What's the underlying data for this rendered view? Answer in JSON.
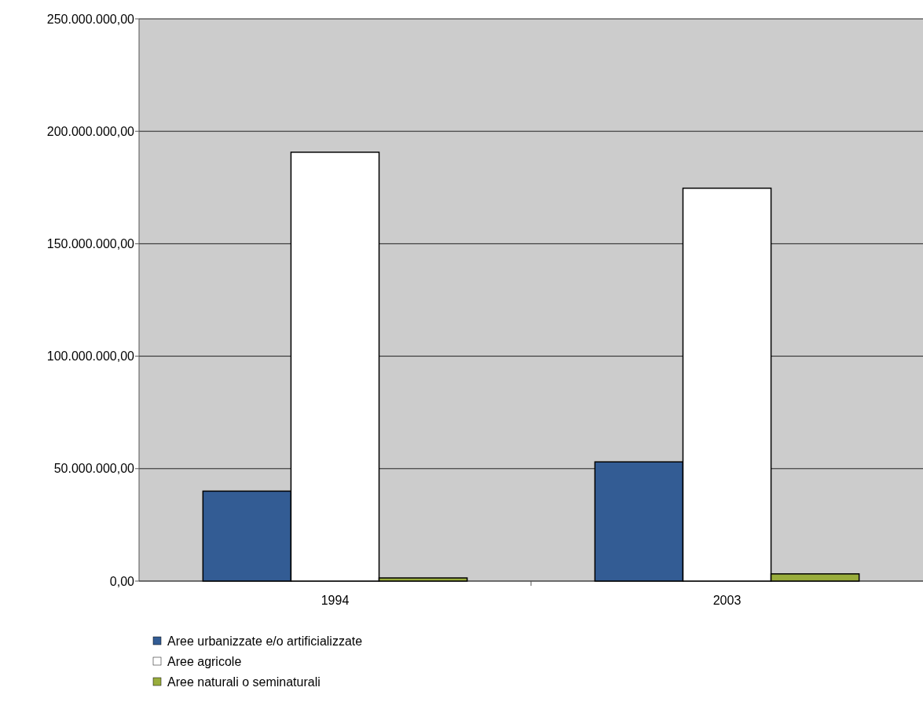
{
  "chart_data": {
    "type": "bar",
    "categories": [
      "1994",
      "2003"
    ],
    "series": [
      {
        "name": "Aree urbanizzate e/o artificializzate",
        "color": "#335c94",
        "values": [
          40000000,
          53000000
        ]
      },
      {
        "name": "Aree agricole",
        "color": "#ffffff",
        "values": [
          190700000,
          174700000
        ]
      },
      {
        "name": "Aree naturali o seminaturali",
        "color": "#99ad3c",
        "values": [
          1400000,
          3200000
        ]
      }
    ],
    "ylim": [
      0,
      250000000
    ],
    "yticks": [
      {
        "value": 0,
        "label": "0,00"
      },
      {
        "value": 50000000,
        "label": "50.000.000,00"
      },
      {
        "value": 100000000,
        "label": "100.000.000,00"
      },
      {
        "value": 150000000,
        "label": "150.000.000,00"
      },
      {
        "value": 200000000,
        "label": "200.000.000,00"
      },
      {
        "value": 250000000,
        "label": "250.000.000,00"
      }
    ],
    "grid": "y",
    "legend": "bottom"
  }
}
